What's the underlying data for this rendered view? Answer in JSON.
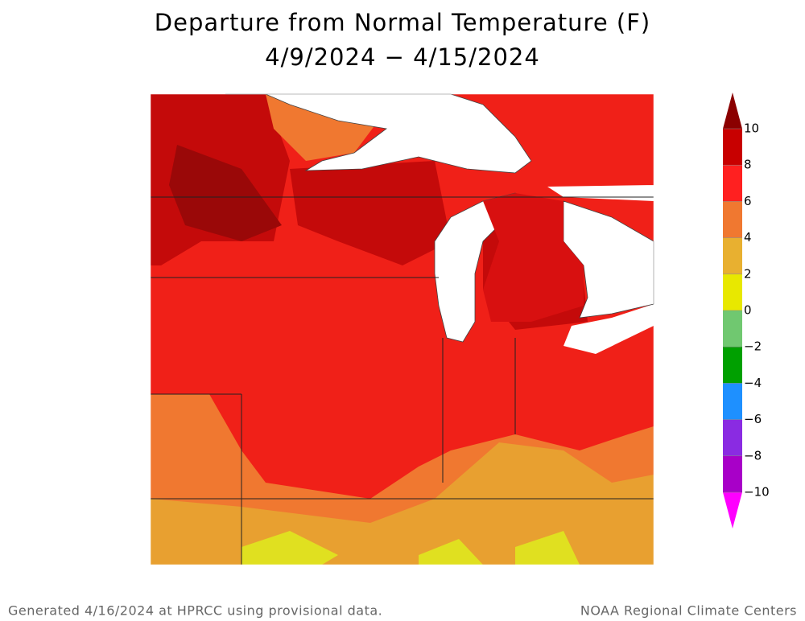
{
  "title": [
    "Departure from Normal Temperature (F)",
    "4/9/2024 − 4/15/2024"
  ],
  "colorbar": {
    "ticks": [
      10,
      8,
      6,
      4,
      2,
      0,
      {
        "value": -2,
        "label": "−2"
      },
      {
        "value": -4,
        "label": "−4"
      },
      {
        "value": -6,
        "label": "−6"
      },
      {
        "value": -8,
        "label": "−8"
      },
      {
        "value": -10,
        "label": "−10"
      }
    ],
    "colors": [
      "#8b0000",
      "#c80000",
      "#ff2020",
      "#f07830",
      "#e8b030",
      "#e8e800",
      "#70c870",
      "#00a000",
      "#1e90ff",
      "#8a2be2",
      "#a800c8",
      "#ff00ff"
    ]
  },
  "footer": {
    "left": "Generated 4/16/2024 at HPRCC using provisional data.",
    "right": "NOAA Regional Climate Centers"
  }
}
